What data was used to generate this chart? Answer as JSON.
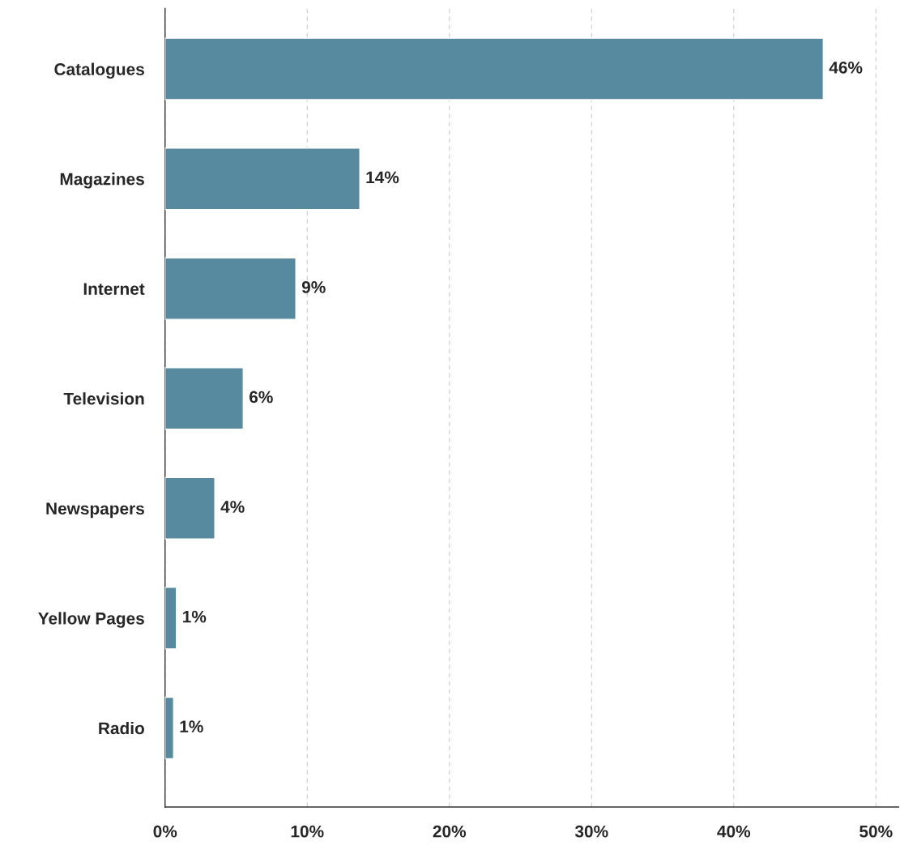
{
  "chart_data": {
    "type": "bar",
    "orientation": "horizontal",
    "categories": [
      "Catalogues",
      "Magazines",
      "Internet",
      "Television",
      "Newspapers",
      "Yellow Pages",
      "Radio"
    ],
    "values": [
      46.3,
      13.7,
      9.2,
      5.5,
      3.5,
      0.8,
      0.6
    ],
    "value_labels": [
      "46%",
      "14%",
      "9%",
      "6%",
      "4%",
      "1%",
      "1%"
    ],
    "color": "#578a9e",
    "xlim": [
      0,
      51.6
    ],
    "xticks": [
      {
        "value": 0,
        "label": "0%"
      },
      {
        "value": 10,
        "label": "10%"
      },
      {
        "value": 20,
        "label": "20%"
      },
      {
        "value": 30,
        "label": "30%"
      },
      {
        "value": 40,
        "label": "40%"
      },
      {
        "value": 50,
        "label": "50%"
      }
    ],
    "grid": "x"
  }
}
